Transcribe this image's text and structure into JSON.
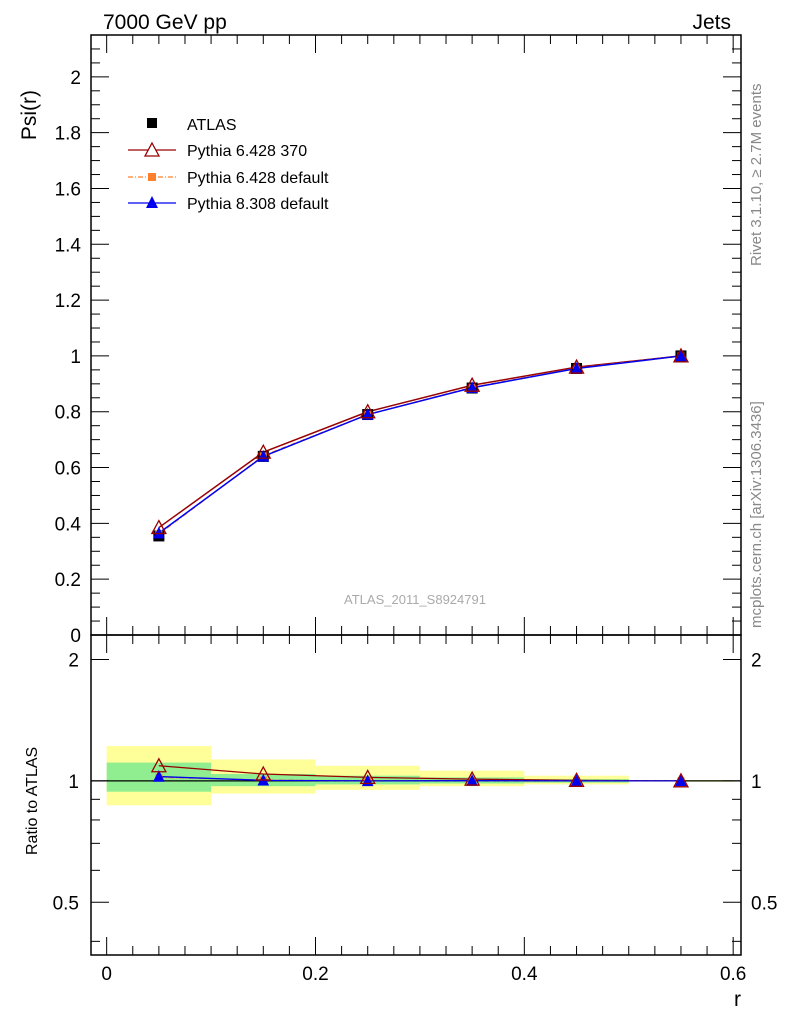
{
  "header": {
    "left_label": "7000 GeV pp",
    "right_label": "Jets"
  },
  "side_text": {
    "rivet": "Rivet 3.1.10, ≥ 2.7M events",
    "mcplots": "mcplots.cern.ch [arXiv:1306.3436]"
  },
  "analysis_label": "ATLAS_2011_S8924791",
  "colors": {
    "data": "#000000",
    "pythia6_370": "#990000",
    "pythia6_default": "#ff7f2a",
    "pythia8_default": "#0000ee",
    "band_inner": "#90ee90",
    "band_outer": "#ffff99"
  },
  "chart_data": [
    {
      "type": "line",
      "ylabel": "Psi(r)",
      "xlim": [
        -0.015,
        0.6075
      ],
      "ylim": [
        0,
        2.15
      ],
      "y_ticks": [
        0,
        0.2,
        0.4,
        0.6,
        0.8,
        1,
        1.2,
        1.4,
        1.6,
        1.8,
        2
      ],
      "y_tick_labels": [
        "0",
        "0.2",
        "0.4",
        "0.6",
        "0.8",
        "1",
        "1.2",
        "1.4",
        "1.6",
        "1.8",
        "2"
      ],
      "legend_position": "top-left",
      "legend": [
        "ATLAS",
        "Pythia 6.428 370",
        "Pythia 6.428 default",
        "Pythia 8.308 default"
      ],
      "x": [
        0.05,
        0.15,
        0.25,
        0.35,
        0.45,
        0.55
      ],
      "series": [
        {
          "name": "ATLAS",
          "marker": "square",
          "values": [
            0.355,
            0.64,
            0.79,
            0.885,
            0.955,
            1.0
          ]
        },
        {
          "name": "Pythia 6.428 370",
          "marker": "open-triangle",
          "values": [
            0.385,
            0.655,
            0.8,
            0.895,
            0.96,
            1.0
          ]
        },
        {
          "name": "Pythia 6.428 default",
          "marker": "small-square",
          "values": [
            0.362,
            0.642,
            0.79,
            0.887,
            0.956,
            1.0
          ]
        },
        {
          "name": "Pythia 8.308 default",
          "marker": "filled-triangle",
          "values": [
            0.365,
            0.64,
            0.79,
            0.886,
            0.955,
            1.0
          ]
        }
      ]
    },
    {
      "type": "line",
      "xlabel": "r",
      "ylabel": "Ratio to ATLAS",
      "xlim": [
        -0.015,
        0.6075
      ],
      "ylim": [
        0.37,
        2.3
      ],
      "y_ticks": [
        0.5,
        1,
        2
      ],
      "y_tick_labels": [
        "0.5",
        "1",
        "2"
      ],
      "x_ticks": [
        0,
        0.2,
        0.4,
        0.6
      ],
      "x_tick_labels": [
        "0",
        "0.2",
        "0.4",
        "0.6"
      ],
      "x": [
        0.05,
        0.15,
        0.25,
        0.35,
        0.45,
        0.55
      ],
      "bins": [
        [
          0,
          0.1
        ],
        [
          0.1,
          0.2
        ],
        [
          0.2,
          0.3
        ],
        [
          0.3,
          0.4
        ],
        [
          0.4,
          0.5
        ],
        [
          0.5,
          0.6
        ]
      ],
      "band_inner": [
        [
          0.94,
          1.11
        ],
        [
          0.97,
          1.04
        ],
        [
          0.98,
          1.03
        ],
        [
          0.985,
          1.02
        ],
        [
          0.99,
          1.01
        ],
        [
          0.997,
          1.003
        ]
      ],
      "band_outer": [
        [
          0.87,
          1.22
        ],
        [
          0.93,
          1.13
        ],
        [
          0.95,
          1.09
        ],
        [
          0.97,
          1.06
        ],
        [
          0.98,
          1.03
        ],
        [
          0.995,
          1.005
        ]
      ],
      "series": [
        {
          "name": "Pythia 6.428 370",
          "values": [
            1.09,
            1.04,
            1.02,
            1.01,
            1.003,
            1.0
          ]
        },
        {
          "name": "Pythia 6.428 default",
          "values": [
            1.02,
            1.005,
            1.0,
            1.0,
            1.0,
            1.0
          ]
        },
        {
          "name": "Pythia 8.308 default",
          "values": [
            1.025,
            1.003,
            1.0,
            1.001,
            1.0,
            1.0
          ]
        }
      ]
    }
  ]
}
